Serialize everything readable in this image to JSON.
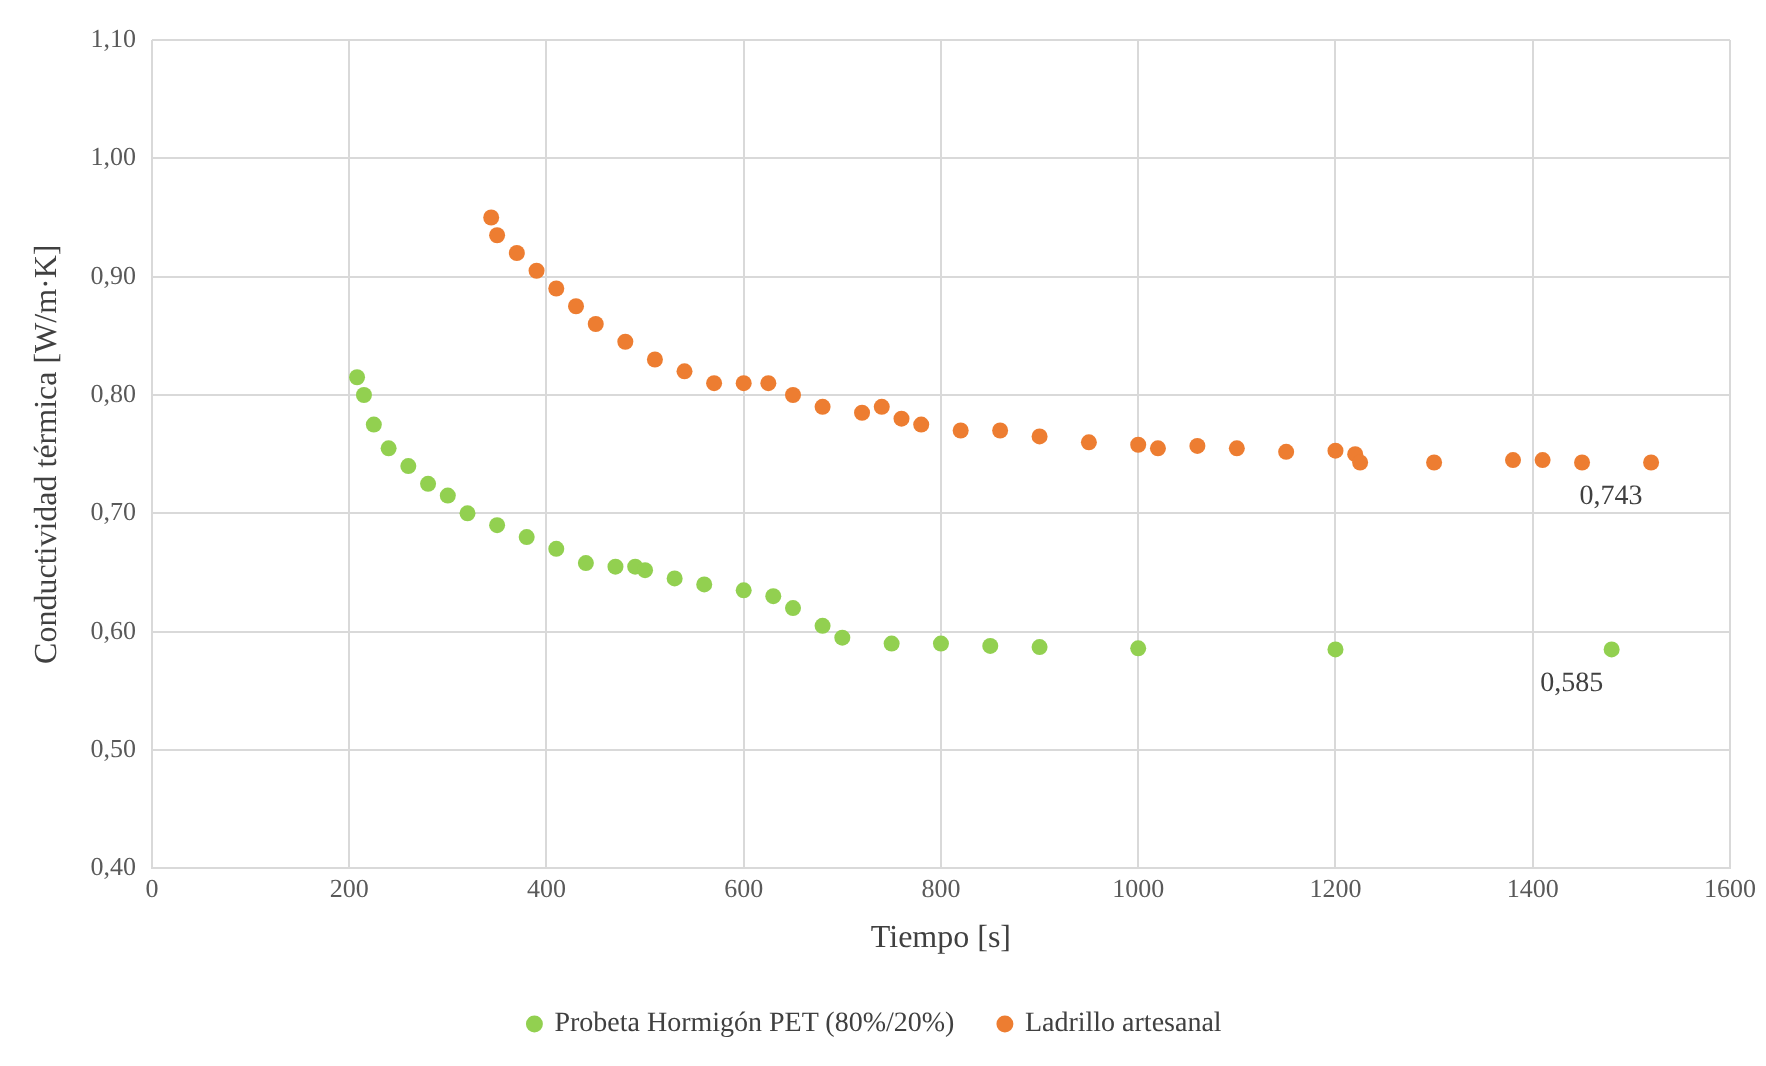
{
  "chart_data": {
    "type": "scatter",
    "xlabel": "Tiempo [s]",
    "ylabel": "Conductividad térmica [W/m·K]",
    "xlim": [
      0,
      1600
    ],
    "xticks": [
      0,
      200,
      400,
      600,
      800,
      1000,
      1200,
      1400,
      1600
    ],
    "ylim": [
      0.4,
      1.1
    ],
    "yticks": [
      {
        "value": 0.4,
        "label": "0,40"
      },
      {
        "value": 0.5,
        "label": "0,50"
      },
      {
        "value": 0.6,
        "label": "0,60"
      },
      {
        "value": 0.7,
        "label": "0,70"
      },
      {
        "value": 0.8,
        "label": "0,80"
      },
      {
        "value": 0.9,
        "label": "0,90"
      },
      {
        "value": 1.0,
        "label": "1,00"
      },
      {
        "value": 1.1,
        "label": "1,10"
      }
    ],
    "grid": true,
    "legend": "bottom",
    "marker": "circle",
    "series": [
      {
        "name": "Probeta Hormigón PET (80%/20%)",
        "color": "#92d050",
        "x": [
          208,
          215,
          225,
          240,
          260,
          280,
          300,
          320,
          350,
          380,
          410,
          440,
          470,
          490,
          500,
          530,
          560,
          600,
          630,
          650,
          680,
          700,
          750,
          800,
          850,
          900,
          1000,
          1200,
          1480
        ],
        "values": [
          0.815,
          0.8,
          0.775,
          0.755,
          0.74,
          0.725,
          0.715,
          0.7,
          0.69,
          0.68,
          0.67,
          0.658,
          0.655,
          0.655,
          0.652,
          0.645,
          0.64,
          0.635,
          0.63,
          0.62,
          0.605,
          0.595,
          0.59,
          0.59,
          0.588,
          0.587,
          0.586,
          0.585,
          0.585
        ],
        "value_labels": [
          null,
          null,
          null,
          null,
          null,
          null,
          null,
          null,
          null,
          null,
          null,
          null,
          null,
          null,
          null,
          null,
          null,
          null,
          null,
          null,
          null,
          null,
          null,
          null,
          null,
          null,
          null,
          null,
          "0,585"
        ]
      },
      {
        "name": "Ladrillo artesanal",
        "color": "#ed7d31",
        "x": [
          344,
          350,
          370,
          390,
          410,
          430,
          450,
          480,
          510,
          540,
          570,
          600,
          625,
          650,
          680,
          720,
          740,
          760,
          780,
          820,
          860,
          900,
          950,
          1000,
          1020,
          1060,
          1100,
          1150,
          1200,
          1220,
          1225,
          1300,
          1380,
          1410,
          1450,
          1520
        ],
        "values": [
          0.95,
          0.935,
          0.92,
          0.905,
          0.89,
          0.875,
          0.86,
          0.845,
          0.83,
          0.82,
          0.81,
          0.81,
          0.81,
          0.8,
          0.79,
          0.785,
          0.79,
          0.78,
          0.775,
          0.77,
          0.77,
          0.765,
          0.76,
          0.758,
          0.755,
          0.757,
          0.755,
          0.752,
          0.753,
          0.75,
          0.743,
          0.743,
          0.745,
          0.745,
          0.743,
          0.743
        ],
        "value_labels": [
          null,
          null,
          null,
          null,
          null,
          null,
          null,
          null,
          null,
          null,
          null,
          null,
          null,
          null,
          null,
          null,
          null,
          null,
          null,
          null,
          null,
          null,
          null,
          null,
          null,
          null,
          null,
          null,
          null,
          null,
          null,
          null,
          null,
          null,
          null,
          "0,743"
        ]
      }
    ]
  }
}
